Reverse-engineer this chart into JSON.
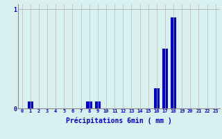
{
  "xlabel": "Précipitations 6min ( mm )",
  "values": [
    0,
    0.07,
    0,
    0,
    0,
    0,
    0,
    0,
    0.07,
    0.07,
    0,
    0,
    0,
    0,
    0,
    0,
    0.2,
    0.6,
    0.92,
    0,
    0,
    0,
    0,
    0
  ],
  "bar_color": "#0000cc",
  "bg_color": "#d8f0f0",
  "grid_color": "#b8b8b8",
  "axis_color": "#888888",
  "text_color": "#0000cc",
  "ylim": [
    0,
    1.05
  ],
  "yticks": [
    0,
    1
  ],
  "ytick_labels": [
    "0",
    "1"
  ],
  "xlim": [
    -0.5,
    23.5
  ],
  "bar_width": 0.7
}
